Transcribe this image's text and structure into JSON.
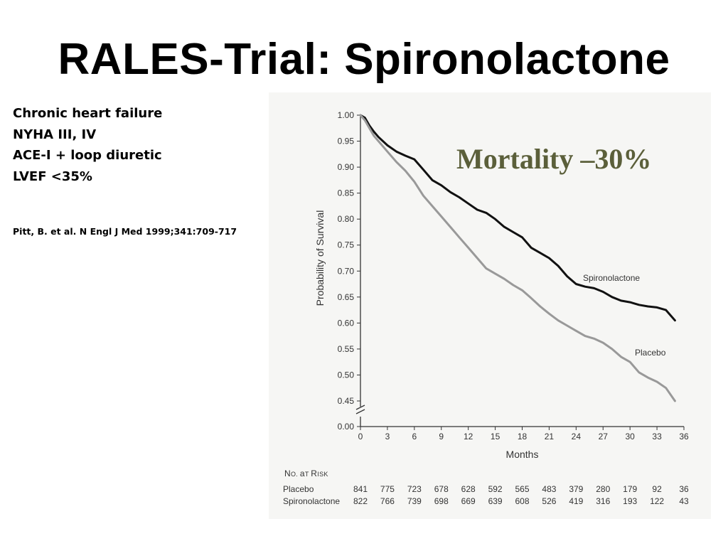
{
  "slide": {
    "title": "RALES-Trial: Spironolactone",
    "criteria": [
      "Chronic heart failure",
      "NYHA III, IV",
      "ACE-I + loop diuretic",
      "LVEF <35%"
    ],
    "citation": "Pitt, B. et al. N Engl J Med 1999;341:709-717"
  },
  "colors": {
    "spironolactone": "#111111",
    "placebo": "#999999",
    "annotation": "#5b5f3a",
    "panel": "#f6f6f4"
  },
  "chart_data": {
    "type": "line",
    "title": "",
    "xlabel": "Months",
    "ylabel": "Probability of Survival",
    "xlim": [
      0,
      36
    ],
    "ylim": [
      0.45,
      1.0
    ],
    "axis_break": true,
    "grid": false,
    "x_ticks": [
      "0",
      "3",
      "6",
      "9",
      "12",
      "15",
      "18",
      "21",
      "24",
      "27",
      "30",
      "33",
      "36"
    ],
    "y_ticks": [
      "1.00",
      "0.95",
      "0.90",
      "0.85",
      "0.80",
      "0.75",
      "0.70",
      "0.65",
      "0.60",
      "0.55",
      "0.50",
      "0.45"
    ],
    "y_zero_tick": "0.00",
    "annotation": "Mortality –30%",
    "series": [
      {
        "name": "Spironolactone",
        "color": "#111111",
        "x": [
          0,
          0.5,
          1,
          1.5,
          2,
          3,
          4,
          5,
          6,
          7,
          8,
          9,
          10,
          11,
          12,
          13,
          14,
          15,
          16,
          17,
          18,
          19,
          20,
          21,
          22,
          23,
          24,
          25,
          26,
          27,
          28,
          29,
          30,
          31,
          32,
          33,
          34,
          35
        ],
        "y": [
          1.0,
          0.995,
          0.98,
          0.968,
          0.958,
          0.942,
          0.93,
          0.922,
          0.915,
          0.895,
          0.875,
          0.865,
          0.852,
          0.842,
          0.83,
          0.818,
          0.812,
          0.8,
          0.785,
          0.775,
          0.765,
          0.745,
          0.735,
          0.725,
          0.71,
          0.69,
          0.675,
          0.67,
          0.667,
          0.66,
          0.65,
          0.643,
          0.64,
          0.635,
          0.632,
          0.63,
          0.625,
          0.605
        ]
      },
      {
        "name": "Placebo",
        "color": "#999999",
        "x": [
          0,
          0.5,
          1,
          1.5,
          2,
          3,
          4,
          5,
          6,
          7,
          8,
          9,
          10,
          11,
          12,
          13,
          14,
          15,
          16,
          17,
          18,
          19,
          20,
          21,
          22,
          23,
          24,
          25,
          26,
          27,
          28,
          29,
          30,
          31,
          32,
          33,
          34,
          35
        ],
        "y": [
          1.0,
          0.99,
          0.975,
          0.96,
          0.95,
          0.93,
          0.91,
          0.893,
          0.872,
          0.845,
          0.825,
          0.805,
          0.785,
          0.765,
          0.745,
          0.725,
          0.705,
          0.695,
          0.685,
          0.673,
          0.663,
          0.648,
          0.632,
          0.618,
          0.605,
          0.595,
          0.585,
          0.575,
          0.57,
          0.562,
          0.55,
          0.535,
          0.525,
          0.505,
          0.495,
          0.487,
          0.475,
          0.45
        ]
      }
    ],
    "series_labels": [
      "Spironolactone",
      "Placebo"
    ],
    "at_risk": {
      "header": "No. at Risk",
      "rows": [
        {
          "label": "Placebo",
          "values": [
            "841",
            "775",
            "723",
            "678",
            "628",
            "592",
            "565",
            "483",
            "379",
            "280",
            "179",
            "92",
            "36"
          ]
        },
        {
          "label": "Spironolactone",
          "values": [
            "822",
            "766",
            "739",
            "698",
            "669",
            "639",
            "608",
            "526",
            "419",
            "316",
            "193",
            "122",
            "43"
          ]
        }
      ]
    }
  }
}
